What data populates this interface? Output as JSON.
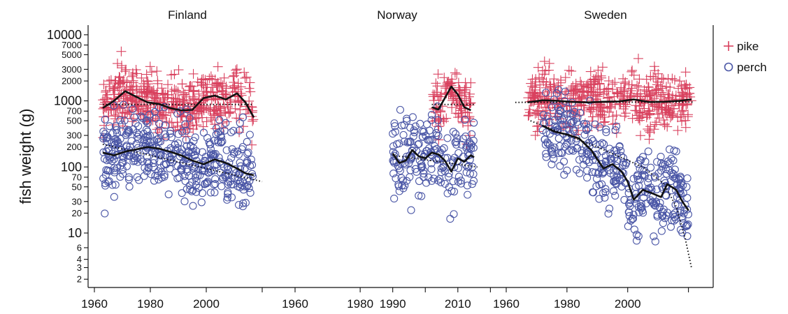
{
  "chart_data": {
    "type": "scatter",
    "ylabel": "fish weight (g)",
    "yscale": "log",
    "ylim": [
      1.5,
      14000
    ],
    "yticks": [
      {
        "value": 10000,
        "label": "10000"
      },
      {
        "value": 7000,
        "label": "7000"
      },
      {
        "value": 5000,
        "label": "5000"
      },
      {
        "value": 3000,
        "label": "3000"
      },
      {
        "value": 2000,
        "label": "2000"
      },
      {
        "value": 1000,
        "label": "1000"
      },
      {
        "value": 700,
        "label": "700"
      },
      {
        "value": 500,
        "label": "500"
      },
      {
        "value": 300,
        "label": "300"
      },
      {
        "value": 200,
        "label": "200"
      },
      {
        "value": 100,
        "label": "100"
      },
      {
        "value": 70,
        "label": "70"
      },
      {
        "value": 50,
        "label": "50"
      },
      {
        "value": 30,
        "label": "30"
      },
      {
        "value": 20,
        "label": "20"
      },
      {
        "value": 10,
        "label": "10"
      },
      {
        "value": 6,
        "label": "6"
      },
      {
        "value": 4,
        "label": "4"
      },
      {
        "value": 3,
        "label": "3"
      },
      {
        "value": 2,
        "label": "2"
      }
    ],
    "legend": {
      "position": "right",
      "entries": [
        {
          "label": "pike",
          "marker": "plus",
          "color": "#d9415e"
        },
        {
          "label": "perch",
          "marker": "circle",
          "color": "#4a56a6"
        }
      ]
    },
    "panels": [
      {
        "title": "Finland",
        "xlim": [
          1960,
          2030
        ],
        "xticks": [
          {
            "value": 1960,
            "label": "1960"
          },
          {
            "value": 1980,
            "label": "1980"
          },
          {
            "value": 2000,
            "label": "2000"
          },
          {
            "value": 2020,
            "label": ""
          }
        ],
        "series": [
          {
            "species": "pike",
            "smooth": [
              [
                1963,
                780
              ],
              [
                1967,
                1000
              ],
              [
                1971,
                1400
              ],
              [
                1975,
                1150
              ],
              [
                1979,
                950
              ],
              [
                1983,
                900
              ],
              [
                1987,
                780
              ],
              [
                1991,
                720
              ],
              [
                1995,
                730
              ],
              [
                1999,
                1100
              ],
              [
                2003,
                1200
              ],
              [
                2007,
                1050
              ],
              [
                2011,
                1300
              ],
              [
                2014,
                950
              ],
              [
                2017,
                560
              ]
            ],
            "trend": [
              [
                1963,
                880
              ],
              [
                2017,
                880
              ]
            ]
          },
          {
            "species": "perch",
            "smooth": [
              [
                1963,
                165
              ],
              [
                1967,
                150
              ],
              [
                1971,
                170
              ],
              [
                1975,
                185
              ],
              [
                1979,
                200
              ],
              [
                1983,
                190
              ],
              [
                1987,
                170
              ],
              [
                1991,
                150
              ],
              [
                1995,
                125
              ],
              [
                1999,
                110
              ],
              [
                2003,
                130
              ],
              [
                2007,
                115
              ],
              [
                2011,
                95
              ],
              [
                2014,
                80
              ],
              [
                2017,
                75
              ]
            ],
            "trend": [
              [
                1963,
                220
              ],
              [
                2020,
                60
              ]
            ]
          }
        ]
      },
      {
        "title": "Norway",
        "xlim": [
          1960,
          2024
        ],
        "xticks": [
          {
            "value": 1960,
            "label": "1960"
          },
          {
            "value": 1980,
            "label": "1980"
          },
          {
            "value": 1990,
            "label": "1990"
          },
          {
            "value": 2000,
            "label": ""
          },
          {
            "value": 2010,
            "label": "2010"
          },
          {
            "value": 2020,
            "label": ""
          }
        ],
        "series": [
          {
            "species": "pike",
            "smooth": [
              [
                2002,
                800
              ],
              [
                2004,
                740
              ],
              [
                2006,
                1100
              ],
              [
                2008,
                1650
              ],
              [
                2010,
                1250
              ],
              [
                2012,
                800
              ],
              [
                2014,
                720
              ]
            ],
            "trend": [
              [
                2002,
                880
              ],
              [
                2015,
                880
              ]
            ]
          },
          {
            "species": "perch",
            "smooth": [
              [
                1990,
                160
              ],
              [
                1992,
                115
              ],
              [
                1994,
                125
              ],
              [
                1996,
                180
              ],
              [
                1998,
                145
              ],
              [
                2000,
                135
              ],
              [
                2002,
                165
              ],
              [
                2004,
                155
              ],
              [
                2006,
                125
              ],
              [
                2008,
                85
              ],
              [
                2010,
                135
              ],
              [
                2012,
                120
              ],
              [
                2014,
                150
              ],
              [
                2015,
                140
              ]
            ],
            "trend": [
              [
                1990,
                150
              ],
              [
                2016,
                100
              ]
            ]
          }
        ]
      },
      {
        "title": "Sweden",
        "xlim": [
          1960,
          2027
        ],
        "xticks": [
          {
            "value": 1960,
            "label": "1960"
          },
          {
            "value": 1980,
            "label": "1980"
          },
          {
            "value": 2000,
            "label": "2000"
          },
          {
            "value": 2020,
            "label": ""
          }
        ],
        "series": [
          {
            "species": "pike",
            "smooth": [
              [
                1967,
                950
              ],
              [
                1972,
                1020
              ],
              [
                1977,
                1000
              ],
              [
                1982,
                960
              ],
              [
                1987,
                950
              ],
              [
                1992,
                970
              ],
              [
                1997,
                980
              ],
              [
                2002,
                1050
              ],
              [
                2007,
                960
              ],
              [
                2012,
                970
              ],
              [
                2017,
                1000
              ],
              [
                2021,
                1050
              ]
            ],
            "trend": [
              [
                1963,
                950
              ],
              [
                2022,
                960
              ]
            ]
          },
          {
            "species": "perch",
            "smooth": [
              [
                1972,
                420
              ],
              [
                1976,
                340
              ],
              [
                1980,
                310
              ],
              [
                1984,
                270
              ],
              [
                1988,
                180
              ],
              [
                1992,
                95
              ],
              [
                1995,
                110
              ],
              [
                1998,
                85
              ],
              [
                2000,
                60
              ],
              [
                2002,
                32
              ],
              [
                2005,
                45
              ],
              [
                2008,
                40
              ],
              [
                2011,
                35
              ],
              [
                2013,
                55
              ],
              [
                2016,
                45
              ],
              [
                2018,
                30
              ],
              [
                2020,
                22
              ]
            ],
            "trend": [
              [
                1968,
                500
              ],
              [
                1990,
                200
              ],
              [
                2005,
                100
              ],
              [
                2012,
                55
              ],
              [
                2016,
                25
              ],
              [
                2019,
                8
              ],
              [
                2021,
                3
              ]
            ]
          }
        ]
      }
    ]
  }
}
